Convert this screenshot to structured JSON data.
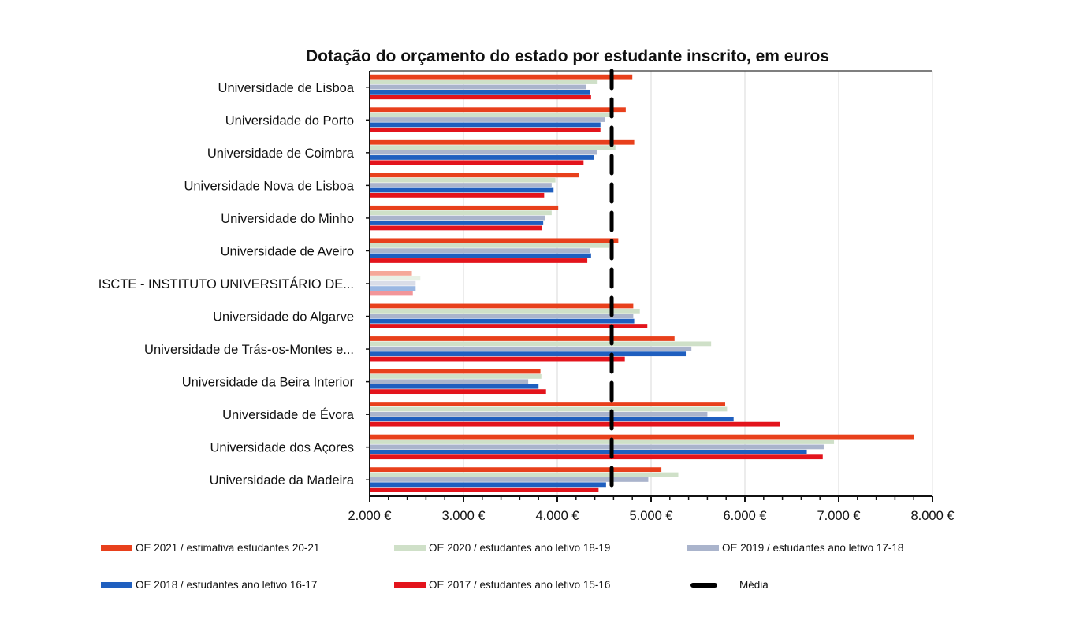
{
  "chart_data": {
    "type": "bar",
    "orientation": "horizontal",
    "title": "Dotação do orçamento do estado por estudante inscrito, em euros",
    "xlabel": "",
    "ylabel": "",
    "xlim": [
      2000,
      8000
    ],
    "x_ticks": [
      2000,
      3000,
      4000,
      5000,
      6000,
      7000,
      8000
    ],
    "x_tick_labels": [
      "2.000 €",
      "3.000 €",
      "4.000 €",
      "5.000 €",
      "6.000 €",
      "7.000 €",
      "8.000 €"
    ],
    "grid": "vertical",
    "legend_position": "bottom",
    "categories": [
      "Universidade de Lisboa",
      "Universidade do Porto",
      "Universidade de Coimbra",
      "Universidade Nova de Lisboa",
      "Universidade do Minho",
      "Universidade de Aveiro",
      "ISCTE - INSTITUTO UNIVERSITÁRIO DE...",
      "Universidade do Algarve",
      "Universidade de Trás-os-Montes e...",
      "Universidade da Beira Interior",
      "Universidade de Évora",
      "Universidade dos Açores",
      "Universidade da Madeira"
    ],
    "series": [
      {
        "name": "OE 2021 / estimativa estudantes 20-21",
        "color": "#e8401c",
        "values": [
          4800,
          4730,
          4820,
          4230,
          4010,
          4650,
          2450,
          4810,
          5250,
          3820,
          5790,
          7800,
          5110
        ]
      },
      {
        "name": "OE 2020 / estudantes ano letivo 18-19",
        "color": "#cfe0c8",
        "values": [
          4430,
          4560,
          4620,
          3980,
          3940,
          4550,
          2540,
          4880,
          5640,
          3830,
          5810,
          6950,
          5290
        ]
      },
      {
        "name": "OE 2019 / estudantes ano letivo 17-18",
        "color": "#aab4cc",
        "values": [
          4310,
          4510,
          4420,
          3940,
          3870,
          4350,
          2490,
          4810,
          5430,
          3690,
          5600,
          6840,
          4970
        ]
      },
      {
        "name": "OE 2018 / estudantes ano letivo 16-17",
        "color": "#1f5fbf",
        "values": [
          4350,
          4460,
          4390,
          3960,
          3850,
          4360,
          2490,
          4820,
          5370,
          3800,
          5880,
          6660,
          4520
        ]
      },
      {
        "name": "OE 2017 / estudantes ano letivo 15-16",
        "color": "#e3141c",
        "values": [
          4360,
          4460,
          4280,
          3860,
          3840,
          4320,
          2460,
          4960,
          4720,
          3880,
          6370,
          6830,
          4440
        ]
      }
    ],
    "faded_categories": [
      "ISCTE - INSTITUTO UNIVERSITÁRIO DE..."
    ],
    "reference_line": {
      "name": "Média",
      "value": 4580,
      "style": "dashed",
      "color": "#000000"
    }
  },
  "legend": [
    {
      "label": "OE 2021 / estimativa estudantes 20-21",
      "color": "#e8401c",
      "type": "swatch"
    },
    {
      "label": "OE 2020 / estudantes ano letivo 18-19",
      "color": "#cfe0c8",
      "type": "swatch"
    },
    {
      "label": "OE 2019 / estudantes ano letivo 17-18",
      "color": "#aab4cc",
      "type": "swatch"
    },
    {
      "label": "OE 2018 / estudantes ano letivo 16-17",
      "color": "#1f5fbf",
      "type": "swatch"
    },
    {
      "label": "OE 2017 / estudantes ano letivo 15-16",
      "color": "#e3141c",
      "type": "swatch"
    },
    {
      "label": "Média",
      "color": "#000000",
      "type": "dash"
    }
  ]
}
